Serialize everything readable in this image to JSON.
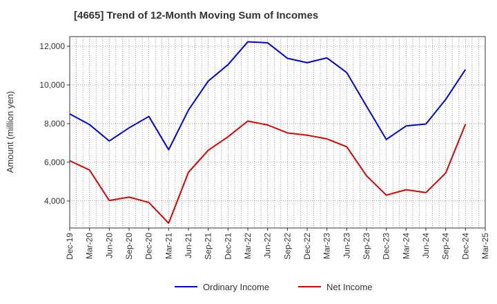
{
  "chart_data": {
    "type": "line",
    "title": "[4665]  Trend of 12-Month Moving Sum of Incomes",
    "xlabel": "",
    "ylabel": "Amount (million yen)",
    "categories": [
      "Dec-19",
      "Mar-20",
      "Jun-20",
      "Sep-20",
      "Dec-20",
      "Mar-21",
      "Jun-21",
      "Sep-21",
      "Dec-21",
      "Mar-22",
      "Jun-22",
      "Sep-22",
      "Dec-22",
      "Mar-23",
      "Jun-23",
      "Sep-23",
      "Dec-23",
      "Mar-24",
      "Jun-24",
      "Sep-24",
      "Dec-24",
      "Mar-25"
    ],
    "ylim": [
      2600,
      12500
    ],
    "yticks": [
      4000,
      6000,
      8000,
      10000,
      12000
    ],
    "ytick_labels": [
      "4,000",
      "6,000",
      "8,000",
      "10,000",
      "12,000"
    ],
    "grid": true,
    "legend_position": "bottom",
    "series": [
      {
        "name": "Ordinary Income",
        "color": "#0000dd",
        "values": [
          8500,
          7950,
          7100,
          7780,
          8370,
          6650,
          8700,
          10200,
          11050,
          12230,
          12180,
          11380,
          11150,
          11400,
          10640,
          8900,
          7180,
          7880,
          7980,
          9250,
          10800,
          null
        ]
      },
      {
        "name": "Net Income",
        "color": "#dd0000",
        "values": [
          6080,
          5600,
          4020,
          4200,
          3920,
          2850,
          5480,
          6620,
          7320,
          8130,
          7930,
          7520,
          7400,
          7210,
          6800,
          5300,
          4300,
          4580,
          4430,
          5440,
          7970,
          null
        ]
      }
    ]
  }
}
